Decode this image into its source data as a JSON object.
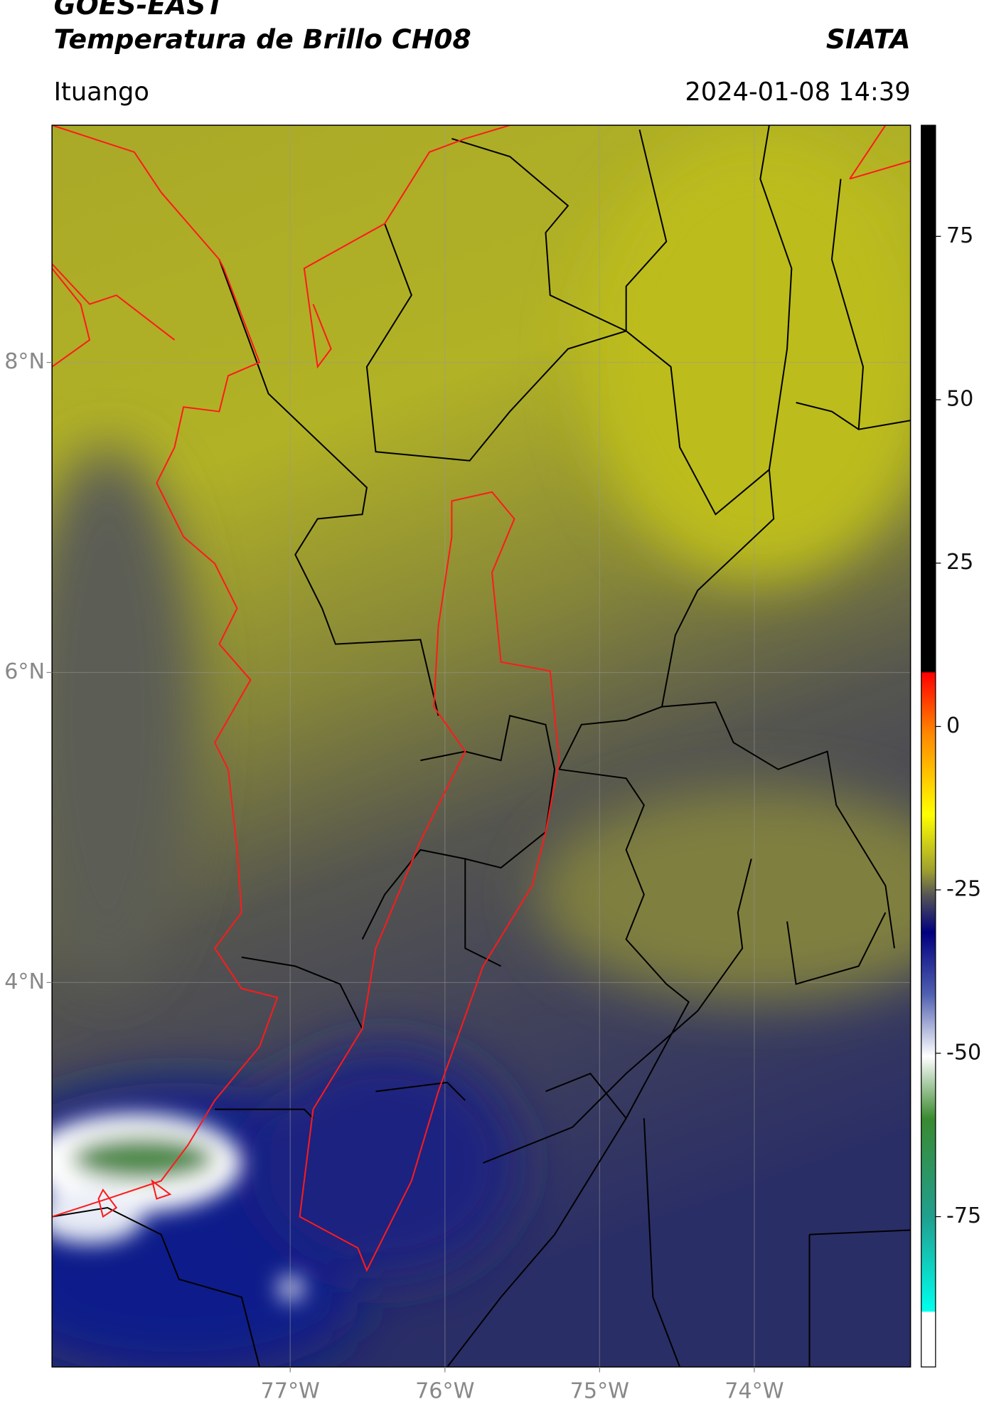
{
  "header": {
    "title": "GOES-EAST",
    "subtitle": "Temperatura de Brillo CH08",
    "source": "SIATA",
    "location": "Ituango",
    "timestamp": "2024-01-08 14:39"
  },
  "map": {
    "xlim": [
      -78.54,
      -72.99
    ],
    "ylim": [
      1.52,
      9.53
    ],
    "xticks": [
      {
        "value": -77,
        "label": "77°W"
      },
      {
        "value": -76,
        "label": "76°W"
      },
      {
        "value": -75,
        "label": "75°W"
      },
      {
        "value": -74,
        "label": "74°W"
      }
    ],
    "yticks": [
      {
        "value": 8,
        "label": "8°N"
      },
      {
        "value": 6,
        "label": "6°N"
      },
      {
        "value": 4,
        "label": "4°N"
      }
    ],
    "grid": true
  },
  "colorbar": {
    "lim": [
      -98,
      92
    ],
    "ticks": [
      75,
      50,
      25,
      0,
      -25,
      -50,
      -75
    ]
  }
}
